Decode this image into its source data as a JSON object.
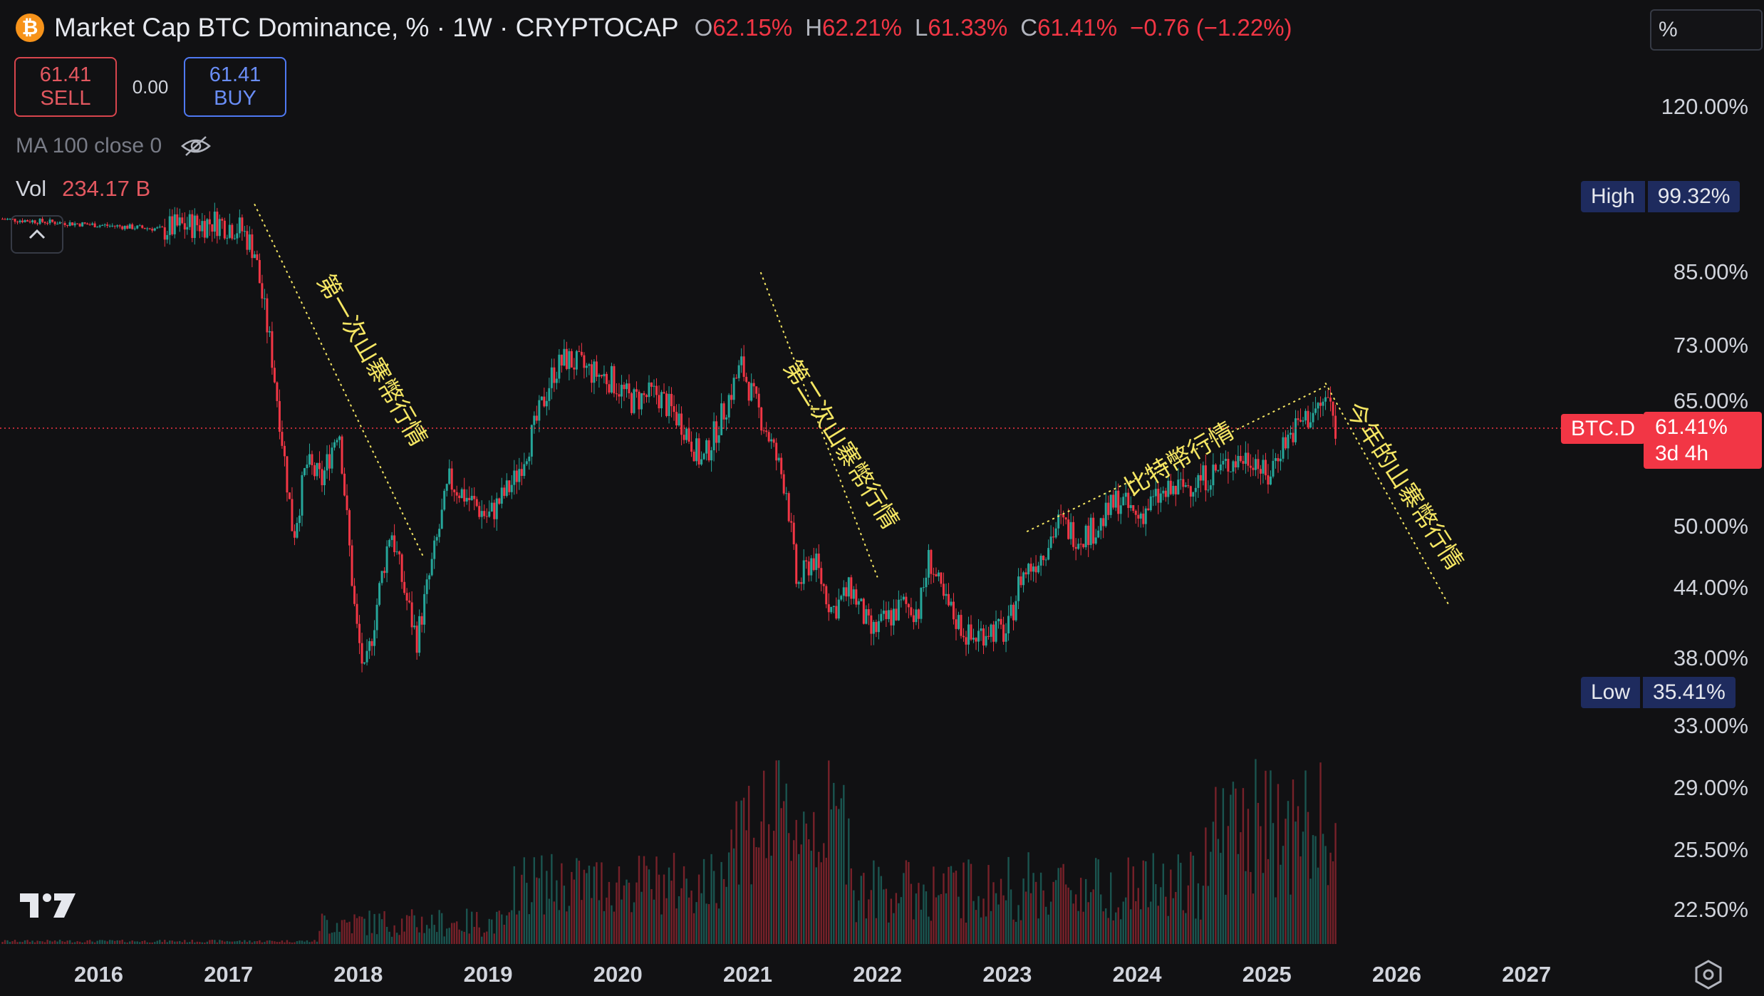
{
  "header": {
    "title": "Market Cap BTC Dominance, % · 1W · CRYPTOCAP",
    "ohlc": [
      {
        "k": "O",
        "v": "62.15%"
      },
      {
        "k": "H",
        "v": "62.21%"
      },
      {
        "k": "L",
        "v": "61.33%"
      },
      {
        "k": "C",
        "v": "61.41%"
      }
    ],
    "change": "−0.76 (−1.22%)"
  },
  "trade": {
    "sell_price": "61.41",
    "sell_label": "SELL",
    "spread": "0.00",
    "buy_price": "61.41",
    "buy_label": "BUY"
  },
  "indicators": {
    "ma_label": "MA 100 close 0",
    "vol_label": "Vol",
    "vol_value": "234.17 B"
  },
  "scale_unit": "%",
  "price_badges": {
    "high_label": "High",
    "high_value": "99.32%",
    "low_label": "Low",
    "low_value": "35.41%",
    "current_symbol": "BTC.D",
    "current_value": "61.41%",
    "current_countdown": "3d 4h"
  },
  "colors": {
    "up": "#26a69a",
    "down": "#f23645",
    "annotation": "#f5e663",
    "background": "#111113"
  },
  "chart_data": {
    "type": "candlestick",
    "title": "Market Cap BTC Dominance, % · 1W · CRYPTOCAP",
    "y_scale": "log",
    "ylim": [
      20.5,
      140
    ],
    "y_ticks": [
      "120.00%",
      "85.00%",
      "73.00%",
      "65.00%",
      "50.00%",
      "44.00%",
      "38.00%",
      "33.00%",
      "29.00%",
      "25.50%",
      "22.50%"
    ],
    "x_ticks": [
      "2016",
      "2017",
      "2018",
      "2019",
      "2020",
      "2021",
      "2022",
      "2023",
      "2024",
      "2025",
      "2026",
      "2027"
    ],
    "xlim": [
      2015.24,
      2028.6
    ],
    "last_close": 61.41,
    "all_time_high": 99.32,
    "all_time_low": 35.41,
    "series_close_anchors": [
      [
        2015.24,
        95.0
      ],
      [
        2016.5,
        93.0
      ],
      [
        2016.9,
        94.5
      ],
      [
        2017.1,
        93.0
      ],
      [
        2017.2,
        89.0
      ],
      [
        2017.33,
        72.0
      ],
      [
        2017.4,
        62.0
      ],
      [
        2017.5,
        49.0
      ],
      [
        2017.6,
        57.0
      ],
      [
        2017.72,
        55.0
      ],
      [
        2017.85,
        62.0
      ],
      [
        2017.98,
        41.0
      ],
      [
        2018.05,
        36.5
      ],
      [
        2018.15,
        43.0
      ],
      [
        2018.25,
        50.0
      ],
      [
        2018.35,
        44.0
      ],
      [
        2018.45,
        39.5
      ],
      [
        2018.58,
        47.0
      ],
      [
        2018.7,
        55.0
      ],
      [
        2018.85,
        53.0
      ],
      [
        2019.0,
        51.0
      ],
      [
        2019.2,
        55.0
      ],
      [
        2019.35,
        61.0
      ],
      [
        2019.5,
        69.0
      ],
      [
        2019.6,
        71.0
      ],
      [
        2019.8,
        69.0
      ],
      [
        2019.95,
        68.0
      ],
      [
        2020.1,
        65.0
      ],
      [
        2020.3,
        66.0
      ],
      [
        2020.5,
        62.0
      ],
      [
        2020.65,
        57.0
      ],
      [
        2020.8,
        63.0
      ],
      [
        2020.95,
        70.0
      ],
      [
        2021.05,
        65.0
      ],
      [
        2021.15,
        61.0
      ],
      [
        2021.3,
        54.0
      ],
      [
        2021.38,
        44.0
      ],
      [
        2021.5,
        47.0
      ],
      [
        2021.65,
        42.0
      ],
      [
        2021.8,
        44.0
      ],
      [
        2021.95,
        40.0
      ],
      [
        2022.05,
        41.0
      ],
      [
        2022.2,
        42.5
      ],
      [
        2022.32,
        42.0
      ],
      [
        2022.4,
        47.0
      ],
      [
        2022.5,
        43.0
      ],
      [
        2022.62,
        41.0
      ],
      [
        2022.72,
        39.5
      ],
      [
        2022.85,
        40.5
      ],
      [
        2023.0,
        40.0
      ],
      [
        2023.1,
        45.0
      ],
      [
        2023.25,
        47.0
      ],
      [
        2023.4,
        50.5
      ],
      [
        2023.55,
        49.0
      ],
      [
        2023.7,
        50.0
      ],
      [
        2023.85,
        53.0
      ],
      [
        2024.0,
        51.0
      ],
      [
        2024.15,
        53.0
      ],
      [
        2024.3,
        54.0
      ],
      [
        2024.45,
        55.0
      ],
      [
        2024.6,
        56.0
      ],
      [
        2024.75,
        57.5
      ],
      [
        2024.9,
        58.0
      ],
      [
        2025.0,
        55.0
      ],
      [
        2025.1,
        59.0
      ],
      [
        2025.25,
        62.0
      ],
      [
        2025.4,
        64.0
      ],
      [
        2025.47,
        65.5
      ],
      [
        2025.53,
        61.41
      ]
    ]
  },
  "annotations": [
    {
      "text": "第一次山寨幣行情"
    },
    {
      "text": "第二次山寨幣行情"
    },
    {
      "text": "比特幣行情"
    },
    {
      "text": "今年的山寨幣行情"
    }
  ]
}
